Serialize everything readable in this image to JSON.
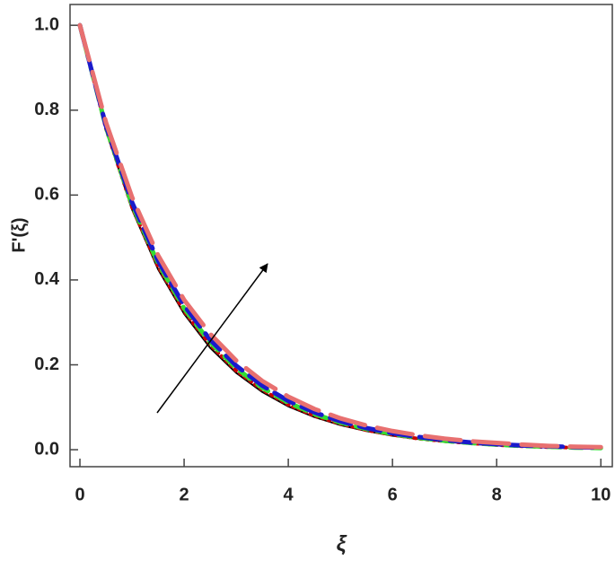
{
  "chart_data": {
    "type": "line",
    "x_label": "ξ",
    "y_label": "F'(ξ)",
    "x": [
      0,
      0.5,
      1,
      1.5,
      2,
      2.5,
      3,
      3.5,
      4,
      4.5,
      5,
      5.5,
      6,
      6.5,
      7,
      7.5,
      8,
      8.5,
      9,
      9.5,
      10
    ],
    "series": [
      {
        "color": "#000000",
        "dash": "none",
        "width": 2,
        "values": [
          1,
          0.752,
          0.566,
          0.425,
          0.32,
          0.24,
          0.181,
          0.136,
          0.102,
          0.077,
          0.058,
          0.044,
          0.033,
          0.025,
          0.019,
          0.014,
          0.01,
          0.008,
          0.006,
          0.004,
          0.003
        ]
      },
      {
        "color": "#cc0000",
        "dash": "2,5",
        "width": 4,
        "values": [
          1,
          0.756,
          0.571,
          0.432,
          0.326,
          0.247,
          0.186,
          0.141,
          0.106,
          0.08,
          0.061,
          0.046,
          0.035,
          0.026,
          0.02,
          0.015,
          0.011,
          0.008,
          0.006,
          0.005,
          0.004
        ]
      },
      {
        "color": "#33dd33",
        "dash": "14,10",
        "width": 5,
        "values": [
          1,
          0.76,
          0.577,
          0.439,
          0.333,
          0.253,
          0.192,
          0.146,
          0.111,
          0.084,
          0.064,
          0.049,
          0.037,
          0.028,
          0.021,
          0.016,
          0.012,
          0.009,
          0.007,
          0.005,
          0.004
        ]
      },
      {
        "color": "#1a1acc",
        "dash": "24,10",
        "width": 5,
        "values": [
          1,
          0.763,
          0.583,
          0.445,
          0.34,
          0.259,
          0.198,
          0.151,
          0.115,
          0.088,
          0.067,
          0.051,
          0.039,
          0.03,
          0.023,
          0.017,
          0.013,
          0.01,
          0.008,
          0.006,
          0.005
        ]
      },
      {
        "color": "#e87070",
        "dash": "40,14",
        "width": 5,
        "values": [
          1,
          0.771,
          0.595,
          0.458,
          0.353,
          0.273,
          0.21,
          0.162,
          0.125,
          0.096,
          0.074,
          0.057,
          0.044,
          0.034,
          0.026,
          0.02,
          0.016,
          0.012,
          0.009,
          0.007,
          0.006
        ]
      }
    ],
    "xlim": [
      -0.19,
      10.22
    ],
    "ylim": [
      -0.04,
      1.049
    ],
    "xticks": [
      0,
      2,
      4,
      6,
      8,
      10
    ],
    "yticks": [
      {
        "value": 0,
        "label": "0.0"
      },
      0.2,
      0.4,
      0.6,
      0.8,
      {
        "value": 1,
        "label": "1.0"
      }
    ]
  }
}
